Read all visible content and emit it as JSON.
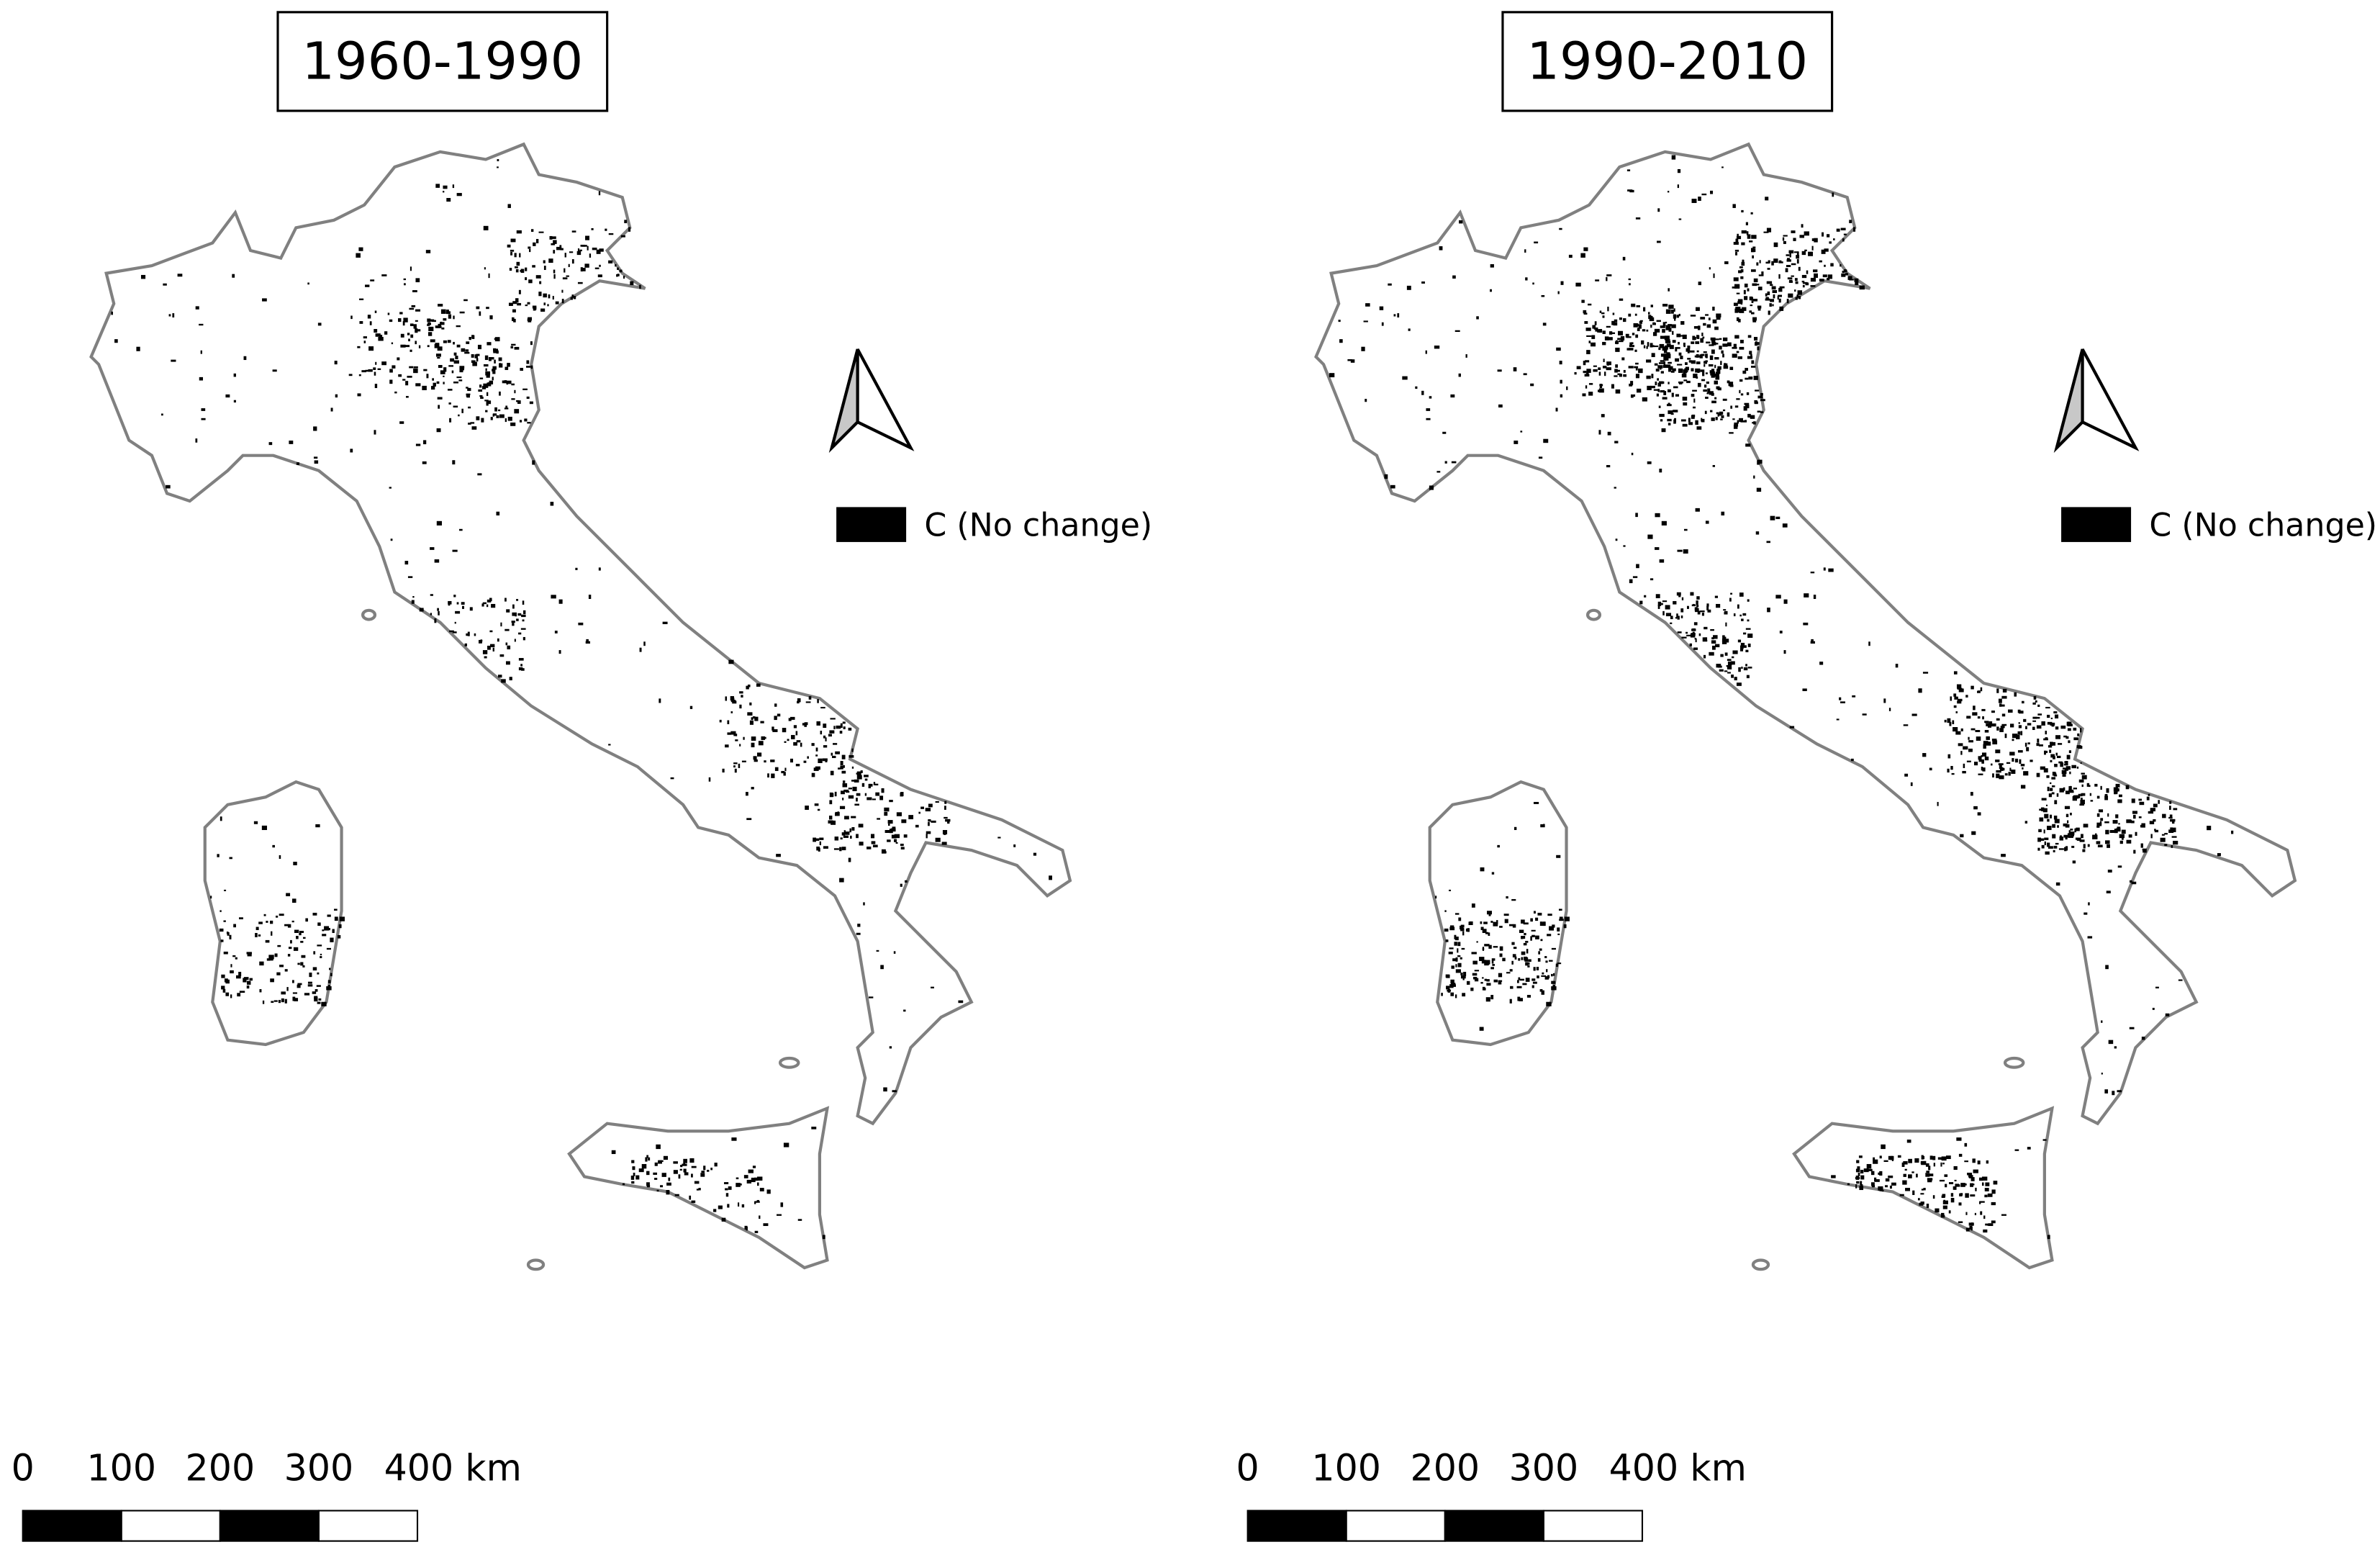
{
  "panels": [
    {
      "title": "1960-1990",
      "legend": "C (No change)",
      "scale_labels": [
        "0",
        "100",
        "200",
        "300",
        "400 km"
      ]
    },
    {
      "title": "1990-2010",
      "legend": "C (No change)",
      "scale_labels": [
        "0",
        "100",
        "200",
        "300",
        "400 km"
      ]
    }
  ]
}
